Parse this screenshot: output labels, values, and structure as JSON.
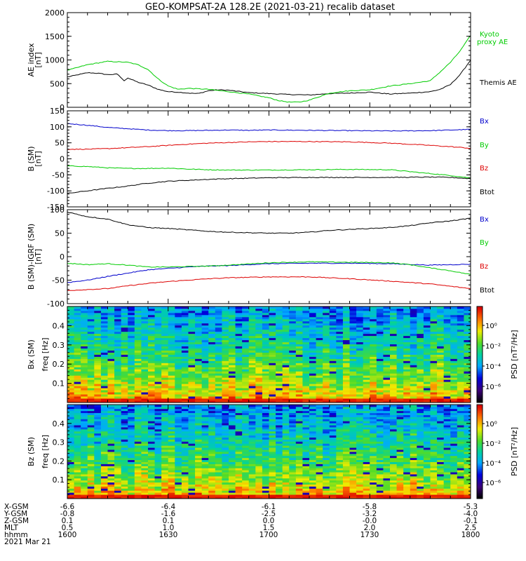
{
  "title": "GEO-KOMPSAT-2A 128.2E (2021-03-21) recalib dataset",
  "colors": {
    "black": "#000000",
    "red": "#dd0000",
    "green": "#00cc00",
    "blue": "#0000cc"
  },
  "chart_data": [
    {
      "type": "line",
      "panel": "ae",
      "ylabel": [
        "AE index",
        "[nT]"
      ],
      "ylim": [
        0,
        2000
      ],
      "yticks": [
        0,
        500,
        1000,
        1500,
        2000
      ],
      "xlim": [
        0,
        2
      ],
      "series": [
        {
          "name": "Themis AE",
          "label_lines": [
            "Themis AE"
          ],
          "color": "#000000",
          "x": [
            0,
            0.1,
            0.15,
            0.2,
            0.25,
            0.28,
            0.3,
            0.35,
            0.4,
            0.45,
            0.5,
            0.55,
            0.6,
            0.65,
            0.7,
            0.75,
            0.8,
            0.9,
            1.0,
            1.1,
            1.2,
            1.3,
            1.4,
            1.5,
            1.6,
            1.7,
            1.8,
            1.85,
            1.9,
            1.95,
            2.0
          ],
          "y": [
            640,
            730,
            720,
            690,
            700,
            560,
            620,
            530,
            470,
            380,
            330,
            320,
            300,
            290,
            350,
            370,
            360,
            310,
            290,
            270,
            260,
            290,
            300,
            320,
            280,
            300,
            330,
            380,
            480,
            700,
            1000
          ]
        },
        {
          "name": "Kyoto proxy AE",
          "label_lines": [
            "Kyoto",
            "proxy AE"
          ],
          "color": "#00cc00",
          "x": [
            0,
            0.1,
            0.2,
            0.3,
            0.35,
            0.4,
            0.45,
            0.5,
            0.55,
            0.6,
            0.7,
            0.8,
            0.9,
            1.0,
            1.05,
            1.1,
            1.15,
            1.2,
            1.3,
            1.4,
            1.5,
            1.6,
            1.7,
            1.8,
            1.85,
            1.9,
            1.95,
            2.0
          ],
          "y": [
            780,
            900,
            970,
            950,
            900,
            800,
            600,
            450,
            380,
            400,
            380,
            330,
            280,
            200,
            140,
            110,
            110,
            150,
            300,
            350,
            370,
            450,
            500,
            560,
            750,
            950,
            1200,
            1520
          ]
        }
      ]
    },
    {
      "type": "line",
      "panel": "bsm",
      "ylabel": [
        "B (SM)",
        "[nT]"
      ],
      "ylim": [
        -150,
        150
      ],
      "yticks": [
        -150,
        -100,
        -50,
        0,
        50,
        100,
        150
      ],
      "xlim": [
        0,
        2
      ],
      "series": [
        {
          "name": "Bx",
          "color": "#0000cc",
          "x": [
            0,
            0.1,
            0.2,
            0.3,
            0.4,
            0.5,
            0.6,
            0.7,
            0.8,
            0.9,
            1.0,
            1.2,
            1.4,
            1.6,
            1.8,
            2.0
          ],
          "y": [
            110,
            105,
            98,
            94,
            90,
            88,
            88,
            89,
            90,
            89,
            90,
            89,
            88,
            87,
            88,
            92
          ]
        },
        {
          "name": "By",
          "color": "#00cc00",
          "x": [
            0,
            0.1,
            0.2,
            0.3,
            0.4,
            0.5,
            0.6,
            0.7,
            0.8,
            1.0,
            1.2,
            1.4,
            1.6,
            1.7,
            1.8,
            1.9,
            2.0
          ],
          "y": [
            -22,
            -24,
            -28,
            -30,
            -30,
            -29,
            -32,
            -34,
            -35,
            -35,
            -34,
            -33,
            -34,
            -40,
            -46,
            -52,
            -60
          ]
        },
        {
          "name": "Bz",
          "color": "#dd0000",
          "x": [
            0,
            0.1,
            0.2,
            0.3,
            0.4,
            0.5,
            0.6,
            0.7,
            0.8,
            0.9,
            1.0,
            1.2,
            1.4,
            1.6,
            1.8,
            1.9,
            2.0
          ],
          "y": [
            30,
            30,
            32,
            35,
            38,
            42,
            46,
            49,
            51,
            53,
            54,
            54,
            53,
            49,
            42,
            38,
            33
          ]
        },
        {
          "name": "Btot",
          "color": "#000000",
          "x": [
            0,
            0.1,
            0.2,
            0.3,
            0.4,
            0.5,
            0.6,
            0.7,
            0.8,
            1.0,
            1.2,
            1.4,
            1.6,
            1.8,
            1.9,
            2.0
          ],
          "y": [
            -108,
            -100,
            -92,
            -85,
            -76,
            -70,
            -67,
            -64,
            -62,
            -59,
            -58,
            -58,
            -58,
            -57,
            -58,
            -62
          ]
        }
      ]
    },
    {
      "type": "line",
      "panel": "bigrf",
      "ylabel": [
        "B (SM)-IGRF (SM)",
        "[nT]"
      ],
      "ylim": [
        -100,
        100
      ],
      "yticks": [
        -100,
        -50,
        0,
        50,
        100
      ],
      "xlim": [
        0,
        2
      ],
      "series": [
        {
          "name": "Bx",
          "color": "#0000cc",
          "x": [
            0,
            0.1,
            0.2,
            0.3,
            0.4,
            0.5,
            0.6,
            0.7,
            0.8,
            0.9,
            1.0,
            1.2,
            1.4,
            1.6,
            1.8,
            2.0
          ],
          "y": [
            -55,
            -50,
            -42,
            -35,
            -28,
            -25,
            -22,
            -20,
            -19,
            -17,
            -15,
            -14,
            -14,
            -15,
            -18,
            -16
          ]
        },
        {
          "name": "By",
          "color": "#00cc00",
          "x": [
            0,
            0.1,
            0.2,
            0.3,
            0.4,
            0.5,
            0.6,
            0.7,
            0.8,
            1.0,
            1.2,
            1.4,
            1.6,
            1.7,
            1.8,
            1.9,
            2.0
          ],
          "y": [
            -14,
            -17,
            -15,
            -18,
            -22,
            -22,
            -21,
            -20,
            -18,
            -13,
            -11,
            -12,
            -13,
            -17,
            -24,
            -30,
            -38
          ]
        },
        {
          "name": "Bz",
          "color": "#dd0000",
          "x": [
            0,
            0.1,
            0.2,
            0.3,
            0.4,
            0.5,
            0.6,
            0.7,
            0.8,
            0.9,
            1.0,
            1.2,
            1.4,
            1.6,
            1.8,
            1.9,
            2.0
          ],
          "y": [
            -72,
            -70,
            -68,
            -62,
            -57,
            -53,
            -50,
            -47,
            -45,
            -44,
            -43,
            -43,
            -47,
            -52,
            -58,
            -63,
            -68
          ]
        },
        {
          "name": "Btot",
          "color": "#000000",
          "x": [
            0,
            0.05,
            0.1,
            0.2,
            0.3,
            0.4,
            0.5,
            0.6,
            0.7,
            0.8,
            0.9,
            1.0,
            1.1,
            1.2,
            1.3,
            1.4,
            1.5,
            1.6,
            1.7,
            1.8,
            1.9,
            2.0
          ],
          "y": [
            95,
            90,
            85,
            80,
            68,
            62,
            60,
            57,
            54,
            52,
            51,
            50,
            50,
            52,
            56,
            58,
            60,
            62,
            66,
            72,
            76,
            82
          ]
        }
      ]
    },
    {
      "type": "heatmap",
      "panel": "spec_bx",
      "ylabel": [
        "Bx (SM)",
        "freq [Hz]"
      ],
      "ylim": [
        0,
        0.5
      ],
      "yticks": [
        0.1,
        0.2,
        0.3,
        0.4
      ],
      "colorbar_label": "PSD [nT²/Hz]",
      "colorbar_ticks": [
        "10⁰",
        "10⁻²",
        "10⁻⁴",
        "10⁻⁶"
      ]
    },
    {
      "type": "heatmap",
      "panel": "spec_bz",
      "ylabel": [
        "Bz (SM)",
        "freq [Hz]"
      ],
      "ylim": [
        0,
        0.5
      ],
      "yticks": [
        0.1,
        0.2,
        0.3,
        0.4
      ],
      "colorbar_label": "PSD [nT²/Hz]",
      "colorbar_ticks": [
        "10⁰",
        "10⁻²",
        "10⁻⁴",
        "10⁻⁶"
      ]
    }
  ],
  "ephemeris": {
    "row_labels": [
      "X-GSM",
      "Y-GSM",
      "Z-GSM",
      "MLT",
      "hhmm"
    ],
    "date_label": "2021 Mar 21",
    "columns": [
      [
        "-6.6",
        "-0.8",
        "0.1",
        "0.5",
        "1600"
      ],
      [
        "-6.4",
        "-1.6",
        "0.1",
        "1.0",
        "1630"
      ],
      [
        "-6.1",
        "-2.5",
        "0.0",
        "1.5",
        "1700"
      ],
      [
        "-5.8",
        "-3.2",
        "-0.0",
        "2.0",
        "1730"
      ],
      [
        "-5.3",
        "-4.0",
        "-0.1",
        "2.5",
        "1800"
      ]
    ]
  }
}
